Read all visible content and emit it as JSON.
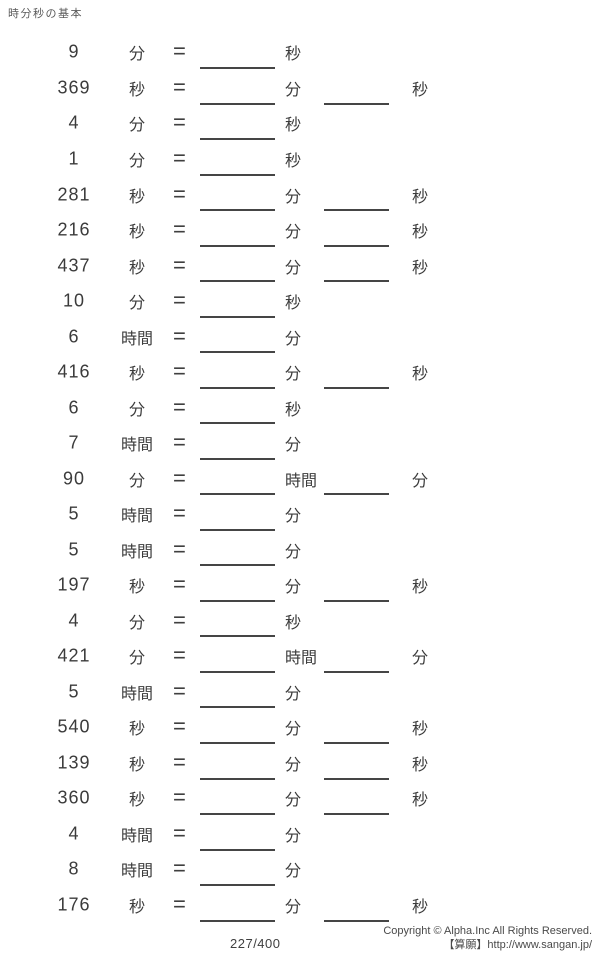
{
  "header": {
    "title": "時分秒の基本"
  },
  "equals_sign": "=",
  "problems": [
    {
      "value": "9",
      "unit": "分",
      "result_unit": "秒"
    },
    {
      "value": "369",
      "unit": "秒",
      "result_unit": "分",
      "result_unit2": "秒"
    },
    {
      "value": "4",
      "unit": "分",
      "result_unit": "秒"
    },
    {
      "value": "1",
      "unit": "分",
      "result_unit": "秒"
    },
    {
      "value": "281",
      "unit": "秒",
      "result_unit": "分",
      "result_unit2": "秒"
    },
    {
      "value": "216",
      "unit": "秒",
      "result_unit": "分",
      "result_unit2": "秒"
    },
    {
      "value": "437",
      "unit": "秒",
      "result_unit": "分",
      "result_unit2": "秒"
    },
    {
      "value": "10",
      "unit": "分",
      "result_unit": "秒"
    },
    {
      "value": "6",
      "unit": "時間",
      "result_unit": "分"
    },
    {
      "value": "416",
      "unit": "秒",
      "result_unit": "分",
      "result_unit2": "秒"
    },
    {
      "value": "6",
      "unit": "分",
      "result_unit": "秒"
    },
    {
      "value": "7",
      "unit": "時間",
      "result_unit": "分"
    },
    {
      "value": "90",
      "unit": "分",
      "result_unit": "時間",
      "result_unit2": "分"
    },
    {
      "value": "5",
      "unit": "時間",
      "result_unit": "分"
    },
    {
      "value": "5",
      "unit": "時間",
      "result_unit": "分"
    },
    {
      "value": "197",
      "unit": "秒",
      "result_unit": "分",
      "result_unit2": "秒"
    },
    {
      "value": "4",
      "unit": "分",
      "result_unit": "秒"
    },
    {
      "value": "421",
      "unit": "分",
      "result_unit": "時間",
      "result_unit2": "分"
    },
    {
      "value": "5",
      "unit": "時間",
      "result_unit": "分"
    },
    {
      "value": "540",
      "unit": "秒",
      "result_unit": "分",
      "result_unit2": "秒"
    },
    {
      "value": "139",
      "unit": "秒",
      "result_unit": "分",
      "result_unit2": "秒"
    },
    {
      "value": "360",
      "unit": "秒",
      "result_unit": "分",
      "result_unit2": "秒"
    },
    {
      "value": "4",
      "unit": "時間",
      "result_unit": "分"
    },
    {
      "value": "8",
      "unit": "時間",
      "result_unit": "分"
    },
    {
      "value": "176",
      "unit": "秒",
      "result_unit": "分",
      "result_unit2": "秒"
    }
  ],
  "footer": {
    "page_number": "227/400",
    "copyright_line1": "Copyright © Alpha.Inc All Rights Reserved.",
    "copyright_line2": "【算願】http://www.sangan.jp/"
  },
  "colors": {
    "text": "#3b3b3b",
    "line": "#454545",
    "muted": "#5a5a5a",
    "background": "#ffffff"
  }
}
